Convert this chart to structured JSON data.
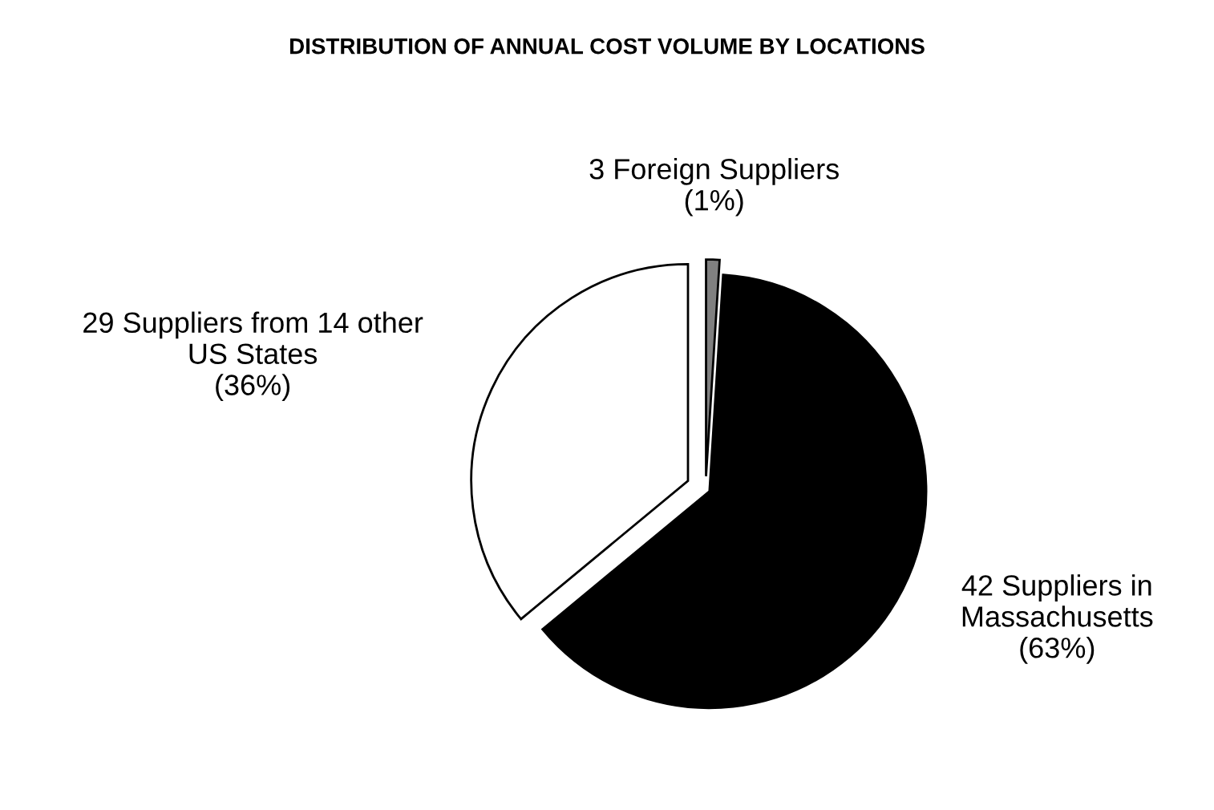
{
  "chart_data": {
    "type": "pie",
    "title": "DISTRIBUTION OF ANNUAL COST VOLUME BY LOCATIONS",
    "categories": [
      "3 Foreign Suppliers",
      "42 Suppliers in\nMassachusetts",
      "29 Suppliers from 14 other\nUS States"
    ],
    "values": [
      1,
      63,
      36
    ],
    "colors": [
      "#808080",
      "#000000",
      "#ffffff"
    ],
    "value_labels": [
      "(1%)",
      "(63%)",
      "(36%)"
    ],
    "legend": false
  }
}
